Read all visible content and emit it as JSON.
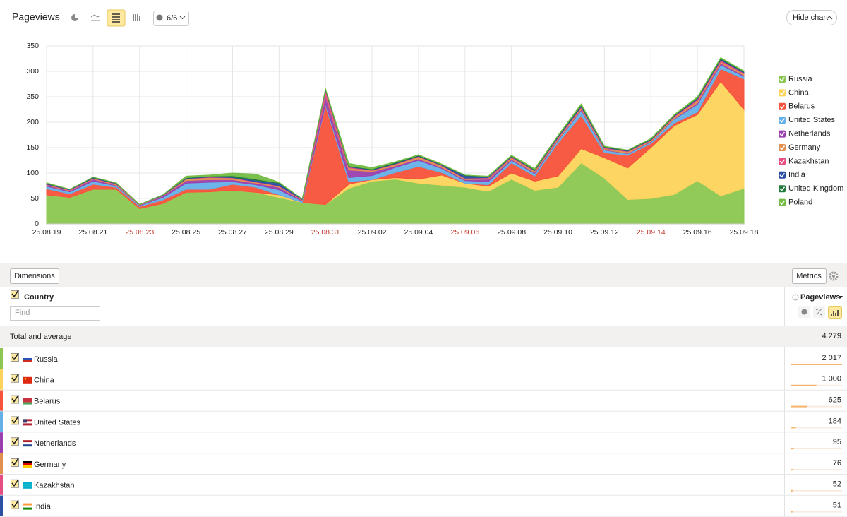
{
  "header": {
    "title": "Pageviews",
    "segments": "6/6",
    "hide_chart": "Hide chart"
  },
  "chart_data": {
    "type": "area",
    "stacked": true,
    "categories": [
      "25.08.19",
      null,
      "25.08.21",
      null,
      "25.08.23",
      null,
      "25.08.25",
      null,
      "25.08.27",
      null,
      "25.08.29",
      null,
      "25.08.31",
      null,
      "25.09.02",
      null,
      "25.09.04",
      null,
      "25.09.06",
      null,
      "25.09.08",
      null,
      "25.09.10",
      null,
      "25.09.12",
      null,
      "25.09.14",
      null,
      "25.09.16",
      null,
      "25.09.18"
    ],
    "highlighted_categories": [
      4,
      12,
      18,
      26
    ],
    "highlight_color": "#c0392b",
    "ylim": [
      0,
      350
    ],
    "yticks": [
      0,
      50,
      100,
      150,
      200,
      250,
      300,
      350
    ],
    "grid": true,
    "legend": "right",
    "series": [
      {
        "name": "Russia",
        "color": "#8cc751",
        "values": [
          57,
          52,
          68,
          68,
          30,
          40,
          62,
          63,
          66,
          62,
          52,
          42,
          38,
          70,
          84,
          88,
          80,
          76,
          72,
          64,
          88,
          66,
          72,
          120,
          90,
          48,
          50,
          58,
          85,
          55,
          70
        ]
      },
      {
        "name": "China",
        "color": "#fdd35b",
        "values": [
          0,
          0,
          0,
          0,
          0,
          0,
          0,
          0,
          0,
          0,
          5,
          0,
          0,
          8,
          3,
          3,
          8,
          20,
          8,
          10,
          12,
          18,
          22,
          28,
          40,
          62,
          100,
          135,
          130,
          225,
          155
        ]
      },
      {
        "name": "Belarus",
        "color": "#f7523a",
        "values": [
          12,
          7,
          10,
          4,
          4,
          7,
          6,
          5,
          12,
          10,
          0,
          0,
          195,
          5,
          0,
          10,
          25,
          5,
          0,
          3,
          20,
          10,
          65,
          65,
          10,
          25,
          8,
          5,
          5,
          25,
          60
        ]
      },
      {
        "name": "United States",
        "color": "#64b0e8",
        "values": [
          5,
          4,
          6,
          3,
          2,
          5,
          12,
          14,
          5,
          5,
          10,
          3,
          3,
          8,
          8,
          10,
          12,
          8,
          5,
          6,
          5,
          5,
          5,
          10,
          5,
          3,
          3,
          8,
          15,
          8,
          5
        ]
      },
      {
        "name": "Netherlands",
        "color": "#9b3fae",
        "values": [
          2,
          2,
          4,
          1,
          1,
          3,
          5,
          5,
          4,
          3,
          5,
          1,
          15,
          15,
          8,
          3,
          3,
          2,
          2,
          5,
          2,
          2,
          1,
          2,
          1,
          1,
          1,
          1,
          3,
          3,
          2
        ]
      },
      {
        "name": "Germany",
        "color": "#e2904f",
        "values": [
          1,
          1,
          1,
          2,
          1,
          1,
          3,
          4,
          3,
          2,
          2,
          1,
          2,
          4,
          2,
          3,
          4,
          3,
          2,
          2,
          3,
          3,
          3,
          3,
          2,
          3,
          2,
          3,
          4,
          3,
          3
        ]
      },
      {
        "name": "Kazakhstan",
        "color": "#e64d82",
        "values": [
          1,
          1,
          1,
          1,
          0,
          0,
          1,
          1,
          1,
          1,
          1,
          1,
          10,
          2,
          1,
          1,
          1,
          1,
          1,
          1,
          2,
          1,
          2,
          2,
          2,
          1,
          1,
          2,
          3,
          3,
          2
        ]
      },
      {
        "name": "India",
        "color": "#2a4fa3",
        "values": [
          1,
          1,
          1,
          1,
          0,
          1,
          1,
          1,
          1,
          3,
          5,
          1,
          1,
          1,
          1,
          1,
          1,
          1,
          5,
          2,
          1,
          1,
          2,
          2,
          1,
          1,
          1,
          1,
          2,
          2,
          2
        ]
      },
      {
        "name": "United Kingdom",
        "color": "#227a3d",
        "values": [
          1,
          0,
          1,
          0,
          0,
          0,
          1,
          1,
          3,
          2,
          1,
          0,
          1,
          1,
          1,
          2,
          1,
          1,
          1,
          0,
          1,
          1,
          1,
          2,
          1,
          1,
          1,
          1,
          1,
          2,
          1
        ]
      },
      {
        "name": "Poland",
        "color": "#74bd45",
        "values": [
          1,
          0,
          0,
          1,
          0,
          0,
          3,
          2,
          5,
          10,
          1,
          0,
          1,
          5,
          3,
          1,
          1,
          1,
          0,
          1,
          1,
          2,
          1,
          2,
          1,
          0,
          1,
          1,
          2,
          1,
          1
        ]
      }
    ]
  },
  "table": {
    "dimensions_button": "Dimensions",
    "metrics_button": "Metrics",
    "dimension": "Country",
    "search_placeholder": "Find",
    "metric": "Pageviews",
    "total_label": "Total and average",
    "total": "4 279",
    "rows": [
      {
        "name": "Russia",
        "value": 2017,
        "value_label": "2 017"
      },
      {
        "name": "China",
        "value": 1000,
        "value_label": "1 000"
      },
      {
        "name": "Belarus",
        "value": 625,
        "value_label": "625"
      },
      {
        "name": "United States",
        "value": 184,
        "value_label": "184"
      },
      {
        "name": "Netherlands",
        "value": 95,
        "value_label": "95"
      },
      {
        "name": "Germany",
        "value": 76,
        "value_label": "76"
      },
      {
        "name": "Kazakhstan",
        "value": 52,
        "value_label": "52"
      },
      {
        "name": "India",
        "value": 51,
        "value_label": "51"
      }
    ]
  }
}
